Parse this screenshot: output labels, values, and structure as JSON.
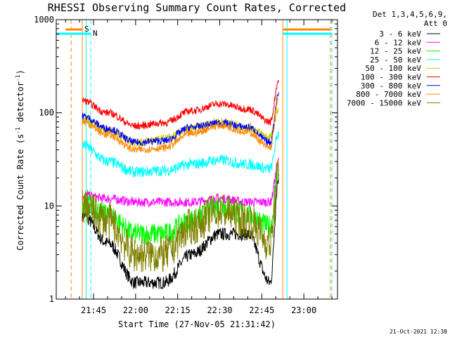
{
  "chart_data": {
    "type": "line",
    "title": "RHESSI Observing Summary Count Rates, Corrected",
    "xlabel": "Start Time (27-Nov-05 21:31:42)",
    "ylabel_parts": [
      "Corrected Count Rate (s",
      "-1",
      " detector",
      "-1",
      ")"
    ],
    "yscale": "log",
    "ylim": [
      1,
      1000
    ],
    "yticks": [
      {
        "value": 1,
        "label": "1"
      },
      {
        "value": 10,
        "label": "10"
      },
      {
        "value": 100,
        "label": "100"
      },
      {
        "value": 1000,
        "label": "1000"
      }
    ],
    "xlim": [
      "21:31:42",
      "23:12:00"
    ],
    "xticks": [
      {
        "t": "21:45",
        "label": "21:45"
      },
      {
        "t": "22:00",
        "label": "22:00"
      },
      {
        "t": "22:15",
        "label": "22:15"
      },
      {
        "t": "22:30",
        "label": "22:30"
      },
      {
        "t": "22:45",
        "label": "22:45"
      },
      {
        "t": "23:00",
        "label": "23:00"
      }
    ],
    "legend_header": [
      "Det 1,3,4,5,6,9,",
      "Att 0"
    ],
    "legend_position": "right",
    "footer": "21-Oct-2021 12:38",
    "x": [
      "21:41:00",
      "21:50:00",
      "22:00:00",
      "22:10:00",
      "22:20:00",
      "22:30:00",
      "22:40:00",
      "22:48:00",
      "22:51:00"
    ],
    "series": [
      {
        "name": "3 - 6 keV",
        "color": "#000000",
        "values": [
          8,
          4,
          1.5,
          1.5,
          3,
          5,
          5,
          1.5,
          20
        ]
      },
      {
        "name": "6 - 12 keV",
        "color": "#ff00ff",
        "values": [
          13,
          12,
          11,
          11,
          11,
          12,
          11,
          11,
          30
        ]
      },
      {
        "name": "12 - 25 keV",
        "color": "#00ff00",
        "values": [
          11,
          8,
          5,
          5,
          7,
          10,
          8,
          6,
          25
        ]
      },
      {
        "name": "25 - 50 keV",
        "color": "#00ffff",
        "values": [
          45,
          30,
          23,
          24,
          28,
          31,
          28,
          25,
          60
        ]
      },
      {
        "name": "50 - 100 keV",
        "color": "#cccc00",
        "values": [
          85,
          65,
          48,
          52,
          68,
          80,
          70,
          55,
          110
        ]
      },
      {
        "name": "100 - 300 keV",
        "color": "#ff0000",
        "values": [
          135,
          100,
          72,
          78,
          105,
          125,
          110,
          80,
          220
        ]
      },
      {
        "name": "300 - 800 keV",
        "color": "#0000ff",
        "values": [
          92,
          68,
          48,
          50,
          70,
          78,
          70,
          48,
          160
        ]
      },
      {
        "name": "800 - 7000 keV",
        "color": "#ff8800",
        "values": [
          80,
          58,
          40,
          42,
          60,
          73,
          62,
          42,
          140
        ]
      },
      {
        "name": "7000 - 15000 keV",
        "color": "#808000",
        "values": [
          10,
          7,
          3,
          3,
          6,
          9,
          7,
          4,
          22
        ]
      }
    ],
    "flag_markers": [
      {
        "label": "S",
        "color": "#ff8800",
        "start": "21:35:00",
        "end": "21:41:00"
      },
      {
        "label": "N",
        "color": "#00ffff",
        "start": "21:31:42",
        "end": "21:44:00"
      }
    ],
    "vertical_markers": [
      {
        "t": "21:37:00",
        "color": "#ff8800",
        "style": "dashed"
      },
      {
        "t": "21:41:00",
        "color": "#ff8800",
        "style": "solid"
      },
      {
        "t": "21:42:20",
        "color": "#00ffff",
        "style": "solid"
      },
      {
        "t": "21:44:00",
        "color": "#00ffff",
        "style": "dashed"
      },
      {
        "t": "22:52:30",
        "color": "#ff8800",
        "style": "solid"
      },
      {
        "t": "22:54:00",
        "color": "#00ffff",
        "style": "solid"
      },
      {
        "t": "23:09:30",
        "color": "#ff8800",
        "style": "dashed"
      },
      {
        "t": "23:10:00",
        "color": "#00ffff",
        "style": "dashed"
      }
    ]
  }
}
